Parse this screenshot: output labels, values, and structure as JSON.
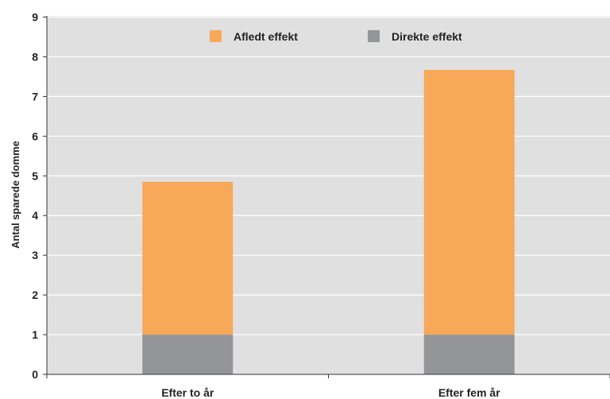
{
  "chart_data": {
    "type": "bar",
    "stacked": true,
    "categories": [
      "Efter to år",
      "Efter fem år"
    ],
    "series": [
      {
        "name": "Direkte effekt",
        "values": [
          1.0,
          1.0
        ],
        "color": "#939598"
      },
      {
        "name": "Afledt effekt",
        "values": [
          3.85,
          6.67
        ],
        "color": "#f7a858"
      }
    ],
    "legend_order": [
      "Afledt effekt",
      "Direkte effekt"
    ],
    "legend_position": "top-center",
    "ylabel": "Antal sparede domme",
    "ylim": [
      0,
      9
    ],
    "yticks": [
      "0",
      "1",
      "2",
      "3",
      "4",
      "5",
      "6",
      "7",
      "8",
      "9"
    ],
    "grid": true,
    "plot_background": "#e0e0e0",
    "gridline_color": "#ffffff"
  }
}
